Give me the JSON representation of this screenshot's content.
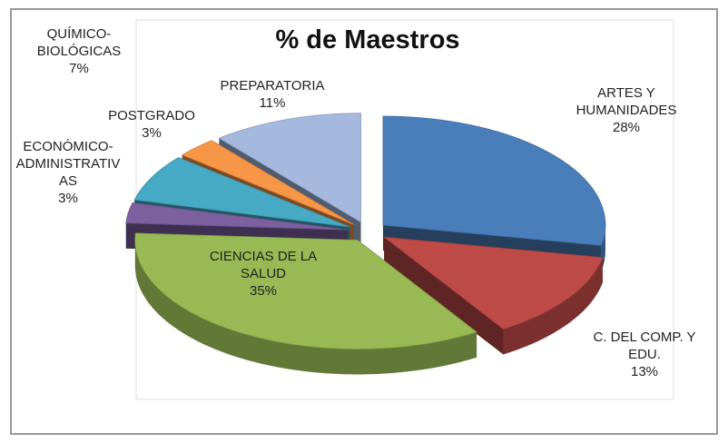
{
  "chart_data": {
    "type": "pie",
    "title": "% de Maestros",
    "categories": [
      "ARTES Y\nHUMANIDADES",
      "C. DEL COMP. Y\nEDU.",
      "CIENCIAS DE LA\nSALUD",
      "ECONÓMICO-\nADMINISTRATIV\nAS",
      "QUÍMICO-\nBIOLÓGICAS",
      "POSTGRADO",
      "PREPARATORIA"
    ],
    "values": [
      28,
      13,
      35,
      3,
      7,
      3,
      11
    ],
    "value_labels": [
      "28%",
      "13%",
      "35%",
      "3%",
      "7%",
      "3%",
      "11%"
    ],
    "colors": [
      "#4a7ebb",
      "#be4b48",
      "#98b954",
      "#7d60a0",
      "#46aac5",
      "#f79646",
      "#a5b9de"
    ]
  }
}
